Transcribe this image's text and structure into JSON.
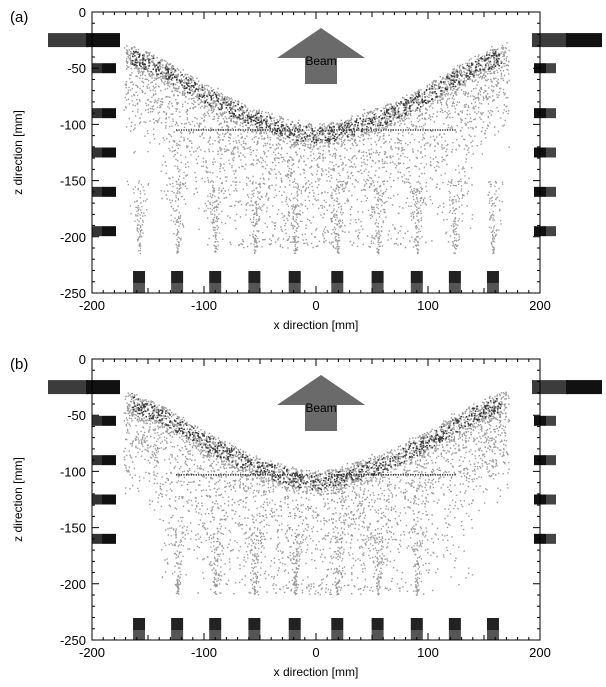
{
  "chart_data": [
    {
      "type": "scatter",
      "panel_label": "(a)",
      "xlabel": "x direction [mm]",
      "ylabel": "z direction [mm]",
      "xlim": [
        -200,
        200
      ],
      "ylim": [
        -250,
        0
      ],
      "x_ticks": [
        -200,
        -100,
        0,
        100,
        200
      ],
      "y_ticks": [
        0,
        -50,
        -100,
        -150,
        -200,
        -250
      ],
      "annotation": "Beam",
      "grid": false,
      "density_profile": {
        "x": [
          -170,
          -140,
          -100,
          -60,
          -20,
          0,
          20,
          60,
          100,
          140,
          170
        ],
        "z_top": [
          -28,
          -40,
          -64,
          -84,
          -97,
          -100,
          -97,
          -84,
          -64,
          -40,
          -28
        ]
      },
      "lower_bulb_x": [
        -158,
        -124,
        -90,
        -55,
        -19,
        19,
        55,
        90,
        124,
        158
      ],
      "lower_bulb_z": -215,
      "band_z": -105,
      "left_markers_z": [
        -30,
        -50,
        -90,
        -125,
        -160,
        -195
      ],
      "right_markers_z": [
        -30,
        -50,
        -90,
        -125,
        -160,
        -195
      ],
      "bottom_markers_x": [
        -158,
        -124,
        -90,
        -55,
        -19,
        19,
        55,
        90,
        124,
        158
      ]
    },
    {
      "type": "scatter",
      "panel_label": "(b)",
      "xlabel": "x direction [mm]",
      "ylabel": "z direction [mm]",
      "xlim": [
        -200,
        200
      ],
      "ylim": [
        -250,
        0
      ],
      "x_ticks": [
        -200,
        -100,
        0,
        100,
        200
      ],
      "y_ticks": [
        0,
        -50,
        -100,
        -150,
        -200,
        -250
      ],
      "annotation": "Beam",
      "grid": false,
      "density_profile": {
        "x": [
          -170,
          -140,
          -100,
          -60,
          -20,
          0,
          20,
          60,
          100,
          140,
          170
        ],
        "z_top": [
          -28,
          -40,
          -64,
          -84,
          -97,
          -100,
          -97,
          -84,
          -64,
          -40,
          -28
        ]
      },
      "lower_bulb_x": [
        -124,
        -90,
        -55,
        -19,
        19,
        55,
        90
      ],
      "lower_bulb_z": -210,
      "band_z": -103,
      "left_markers_z": [
        -30,
        -55,
        -90,
        -125,
        -160
      ],
      "right_markers_z": [
        -30,
        -55,
        -90,
        -125,
        -160
      ],
      "bottom_markers_x": [
        -158,
        -124,
        -90,
        -55,
        -19,
        19,
        55,
        90,
        124,
        158
      ]
    }
  ]
}
